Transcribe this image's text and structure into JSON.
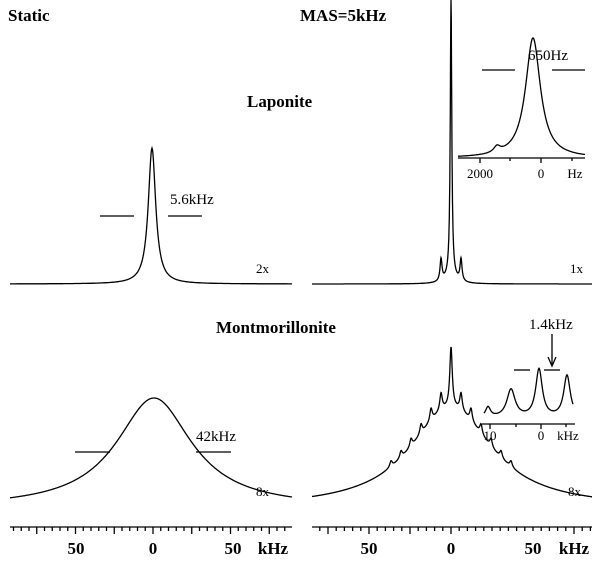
{
  "labels": {
    "static": "Static",
    "mas": "MAS=5kHz"
  },
  "samples": [
    {
      "name": "Laponite",
      "static": {
        "width": "5.6kHz",
        "scale": "2x"
      },
      "mas": {
        "scale": "1x",
        "inset": {
          "width": "650Hz",
          "ticks": [
            2000,
            0
          ],
          "unit": "Hz"
        }
      }
    },
    {
      "name": "Montmorillonite",
      "static": {
        "width": "42kHz",
        "scale": "8x"
      },
      "mas": {
        "scale": "8x",
        "inset": {
          "width": "1.4kHz",
          "ticks": [
            10,
            0
          ],
          "unit": "kHz"
        }
      }
    }
  ],
  "axes": [
    {
      "ticks": [
        50,
        0,
        50
      ],
      "unit": "kHz"
    },
    {
      "ticks": [
        50,
        0,
        50
      ],
      "unit": "kHz"
    }
  ]
}
